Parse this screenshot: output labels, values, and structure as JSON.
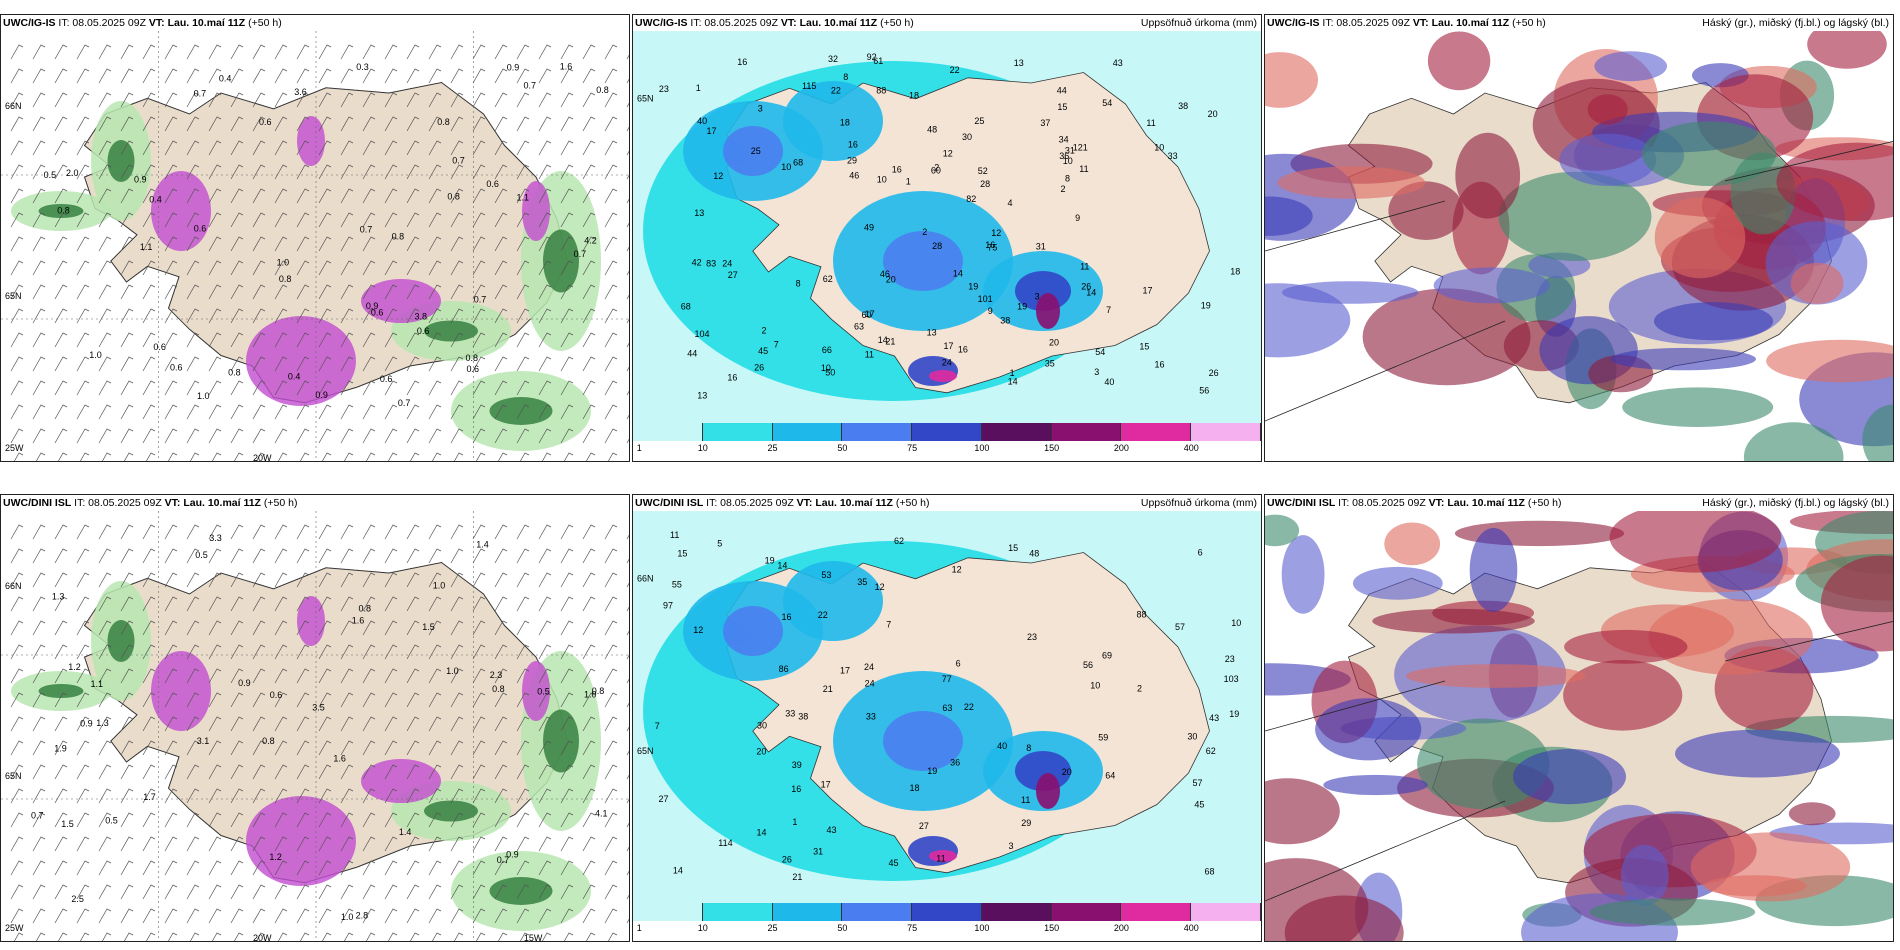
{
  "panels": [
    {
      "id": "p1",
      "model": "UWC/IG-IS",
      "it": "IT: 08.05.2025 09Z",
      "vt_label": "VT:",
      "vt": "Lau. 10.maí 11Z",
      "lead": "(+50 h)",
      "right": "",
      "labels": [
        "0.7",
        "0.7",
        "0.6",
        "0.9",
        "0.6",
        "0.6",
        "0.7",
        "0.6",
        "0.8",
        "0.6",
        "1.0",
        "0.5",
        "1.0",
        "0.9",
        "0.8",
        "0.9",
        "0.8",
        "0.7",
        "0.7",
        "1.1",
        "0.8",
        "0.6",
        "1.0",
        "0.6",
        "0.8",
        "0.7",
        "1.1",
        "0.4",
        "0.9",
        "0.6",
        "0.6",
        "1.6",
        "0.8",
        "0.8",
        "0.4",
        "0.4",
        "0.3",
        "2.0",
        "4.2",
        "3.8",
        "3.6",
        "0.7",
        "0.8"
      ],
      "axis": [
        "66N",
        "65N",
        "25W",
        "20W"
      ]
    },
    {
      "id": "p2",
      "model": "UWC/IG-IS",
      "it": "IT: 08.05.2025 09Z",
      "vt_label": "VT:",
      "vt": "Lau. 10.maí 11Z",
      "lead": "(+50 h)",
      "right": "Uppsöfnuð úrkoma (mm)",
      "labels": [
        "16",
        "17",
        "12",
        "19",
        "18",
        "13",
        "15",
        "44",
        "54",
        "63",
        "56",
        "46",
        "21",
        "22",
        "20",
        "29",
        "26",
        "27",
        "28",
        "20",
        "23",
        "26",
        "24",
        "31",
        "14",
        "15",
        "16",
        "30",
        "33",
        "38",
        "16",
        "20",
        "25",
        "13",
        "16",
        "14",
        "17",
        "11",
        "12",
        "13",
        "10",
        "17",
        "18",
        "11",
        "9",
        "10",
        "12",
        "16",
        "18",
        "26",
        "17",
        "2",
        "1",
        "3",
        "2",
        "3",
        "10",
        "1",
        "4",
        "11",
        "28",
        "34",
        "31",
        "38",
        "40",
        "24",
        "43",
        "45",
        "50",
        "52",
        "68",
        "75",
        "82",
        "62",
        "66",
        "42",
        "37",
        "54",
        "48",
        "36",
        "60",
        "83",
        "121",
        "61",
        "115",
        "13",
        "25",
        "32",
        "40",
        "44",
        "101",
        "104",
        "88",
        "49",
        "46",
        "60",
        "68",
        "92",
        "35",
        "19",
        "16",
        "22",
        "14",
        "19",
        "10",
        "8",
        "9",
        "7",
        "8",
        "14",
        "16",
        "8",
        "7",
        "11",
        "10",
        "2",
        "3",
        "2",
        "1"
      ],
      "axis": [
        "65N"
      ]
    },
    {
      "id": "p3",
      "model": "UWC/IG-IS",
      "it": "IT: 08.05.2025 09Z",
      "vt_label": "VT:",
      "vt": "Lau. 10.maí 11Z",
      "lead": "(+50 h)",
      "right": "Háský (gr.), miðský (fj.bl.) og lágský (bl.)",
      "labels": [],
      "axis": []
    },
    {
      "id": "p4",
      "model": "UWC/DINI ISL",
      "it": "IT: 08.05.2025 09Z",
      "vt_label": "VT:",
      "vt": "Lau. 10.maí 11Z",
      "lead": "(+50 h)",
      "right": "",
      "labels": [
        "3.3",
        "1.0",
        "1.0",
        "0.8",
        "1.6",
        "1.3",
        "1.3",
        "1.5",
        "1.9",
        "1.6",
        "3.5",
        "2.5",
        "0.5",
        "3.1",
        "1.0",
        "2.8",
        "1.2",
        "1.4",
        "1.0",
        "1.7",
        "1.1",
        "0.9",
        "0.8",
        "0.5",
        "0.7",
        "1.2",
        "0.6",
        "0.8",
        "0.9",
        "1.5",
        "0.7",
        "0.8",
        "0.5",
        "0.9",
        "1.4",
        "4.1",
        "2.3"
      ],
      "axis": [
        "66N",
        "65N",
        "25W",
        "20W",
        "15W"
      ]
    },
    {
      "id": "p5",
      "model": "UWC/DINI ISL",
      "it": "IT: 08.05.2025 09Z",
      "vt_label": "VT:",
      "vt": "Lau. 10.maí 11Z",
      "lead": "(+50 h)",
      "right": "Uppsöfnuð úrkoma (mm)",
      "labels": [
        "15",
        "11",
        "7",
        "6",
        "10",
        "11",
        "12",
        "17",
        "14",
        "20",
        "16",
        "22",
        "21",
        "20",
        "19",
        "17",
        "18",
        "14",
        "22",
        "24",
        "23",
        "27",
        "31",
        "33",
        "30",
        "36",
        "39",
        "64",
        "45",
        "35",
        "40",
        "53",
        "57",
        "62",
        "63",
        "86",
        "19",
        "24",
        "29",
        "23",
        "16",
        "11",
        "8",
        "7",
        "5",
        "6",
        "1",
        "2",
        "3",
        "12",
        "19",
        "38",
        "26",
        "30",
        "59",
        "55",
        "68",
        "77",
        "88",
        "62",
        "69",
        "43",
        "48",
        "57",
        "56",
        "103",
        "43",
        "12",
        "10",
        "14",
        "15",
        "21",
        "27",
        "33",
        "45",
        "97",
        "114"
      ],
      "axis": [
        "66N",
        "65N"
      ]
    },
    {
      "id": "p6",
      "model": "UWC/DINI ISL",
      "it": "IT: 08.05.2025 09Z",
      "vt_label": "VT:",
      "vt": "Lau. 10.maí 11Z",
      "lead": "(+50 h)",
      "right": "Háský (gr.), miðský (fj.bl.) og lágský (bl.)",
      "labels": [],
      "axis": []
    }
  ],
  "colorbar": {
    "ticks": [
      "1",
      "10",
      "25",
      "50",
      "75",
      "100",
      "150",
      "200",
      "400"
    ],
    "colors": [
      "#c8f7f7",
      "#33e0e8",
      "#1fb8ea",
      "#4a7ef0",
      "#3246c8",
      "#5a0f5e",
      "#8a1070",
      "#e02aa0",
      "#f5b0f0"
    ]
  }
}
